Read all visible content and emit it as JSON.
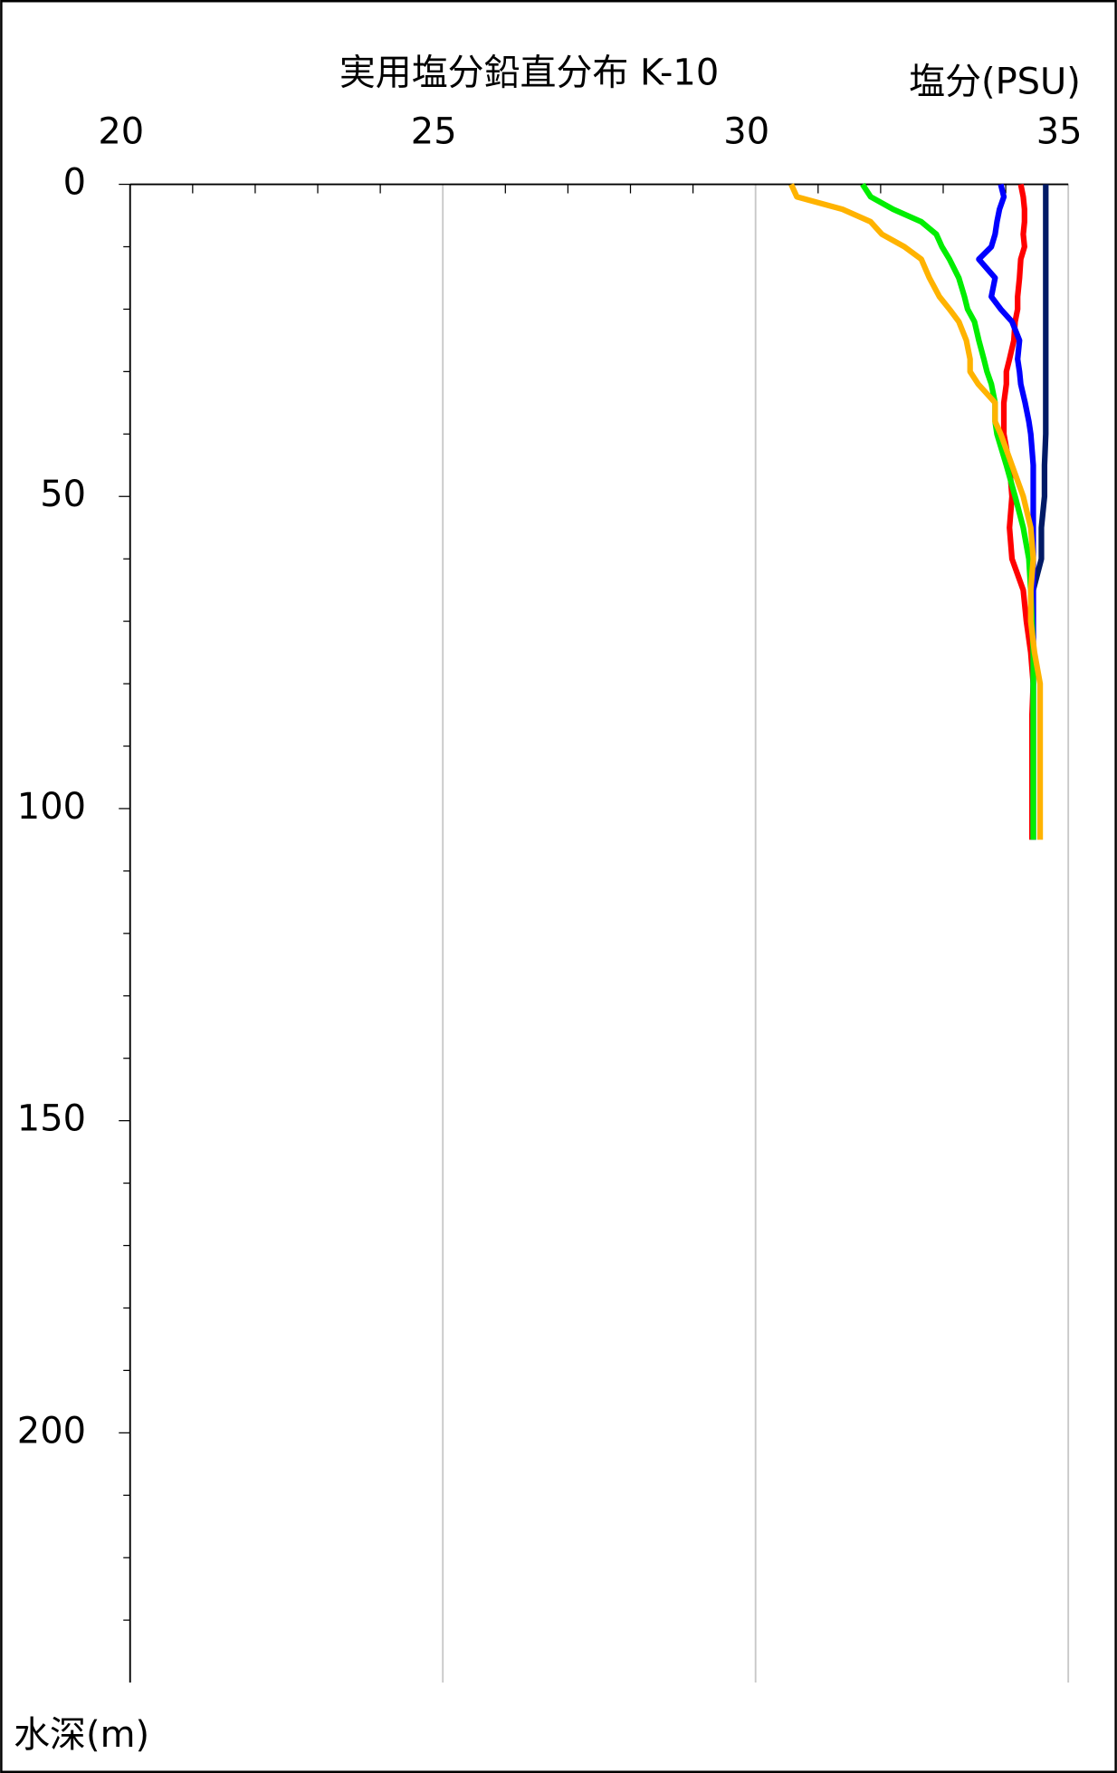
{
  "chart_data": {
    "type": "profile",
    "title": "実用塩分鉛直分布 K-10",
    "x_label": "塩分(PSU)",
    "y_label": "水深(m)",
    "xlim": [
      20,
      35
    ],
    "xticks": [
      20,
      25,
      30,
      35
    ],
    "xminorticks": [
      21,
      22,
      23,
      24,
      26,
      27,
      28,
      29,
      31,
      32,
      33,
      34
    ],
    "ylim": [
      0,
      240
    ],
    "yticks": [
      0,
      50,
      100,
      150,
      200
    ],
    "yminorticks": [
      10,
      20,
      30,
      40,
      60,
      70,
      80,
      90,
      110,
      120,
      130,
      140,
      160,
      170,
      180,
      190,
      210,
      220,
      230
    ],
    "y_inverted": true,
    "grid": true,
    "y": [
      0,
      2,
      4,
      6,
      8,
      10,
      12,
      15,
      18,
      20,
      22,
      25,
      28,
      30,
      32,
      35,
      38,
      40,
      45,
      50,
      55,
      60,
      65,
      70,
      75,
      80,
      85,
      90,
      95,
      100,
      105
    ],
    "series": [
      {
        "color": "#001a66",
        "values": [
          34.64,
          34.64,
          34.64,
          34.64,
          34.64,
          34.64,
          34.64,
          34.64,
          34.64,
          34.64,
          34.64,
          34.64,
          34.64,
          34.64,
          34.64,
          34.64,
          34.64,
          34.64,
          34.62,
          34.62,
          34.57,
          34.57,
          34.44,
          34.44,
          34.44,
          34.44,
          34.44,
          34.44,
          34.44,
          34.44,
          34.44
        ]
      },
      {
        "color": "#ff0000",
        "values": [
          34.24,
          34.28,
          34.3,
          34.3,
          34.28,
          34.3,
          34.24,
          34.22,
          34.19,
          34.19,
          34.15,
          34.13,
          34.06,
          34.01,
          34.01,
          33.97,
          33.97,
          33.97,
          34.06,
          34.1,
          34.06,
          34.1,
          34.28,
          34.33,
          34.4,
          34.44,
          34.42,
          34.42,
          34.42,
          34.42,
          34.42
        ]
      },
      {
        "color": "#0000ff",
        "values": [
          33.92,
          33.97,
          33.9,
          33.86,
          33.83,
          33.77,
          33.57,
          33.83,
          33.77,
          33.92,
          34.1,
          34.22,
          34.19,
          34.22,
          34.24,
          34.31,
          34.37,
          34.4,
          34.44,
          34.44,
          34.44,
          34.44,
          34.44,
          34.44,
          34.44,
          34.44,
          34.44,
          34.44,
          34.44,
          34.44,
          34.44
        ]
      },
      {
        "color": "#00ee00",
        "values": [
          31.71,
          31.84,
          32.2,
          32.65,
          32.89,
          32.98,
          33.1,
          33.25,
          33.34,
          33.39,
          33.5,
          33.57,
          33.65,
          33.7,
          33.77,
          33.83,
          33.83,
          33.86,
          34.01,
          34.15,
          34.28,
          34.37,
          34.4,
          34.42,
          34.44,
          34.44,
          34.44,
          34.44,
          34.44,
          34.44,
          34.44
        ]
      },
      {
        "color": "#ffb300",
        "values": [
          30.57,
          30.66,
          31.39,
          31.84,
          32.02,
          32.38,
          32.65,
          32.78,
          32.94,
          33.1,
          33.25,
          33.37,
          33.43,
          33.43,
          33.56,
          33.83,
          33.83,
          33.92,
          34.1,
          34.28,
          34.4,
          34.44,
          34.4,
          34.4,
          34.46,
          34.55,
          34.55,
          34.55,
          34.55,
          34.55,
          34.55
        ]
      }
    ]
  }
}
